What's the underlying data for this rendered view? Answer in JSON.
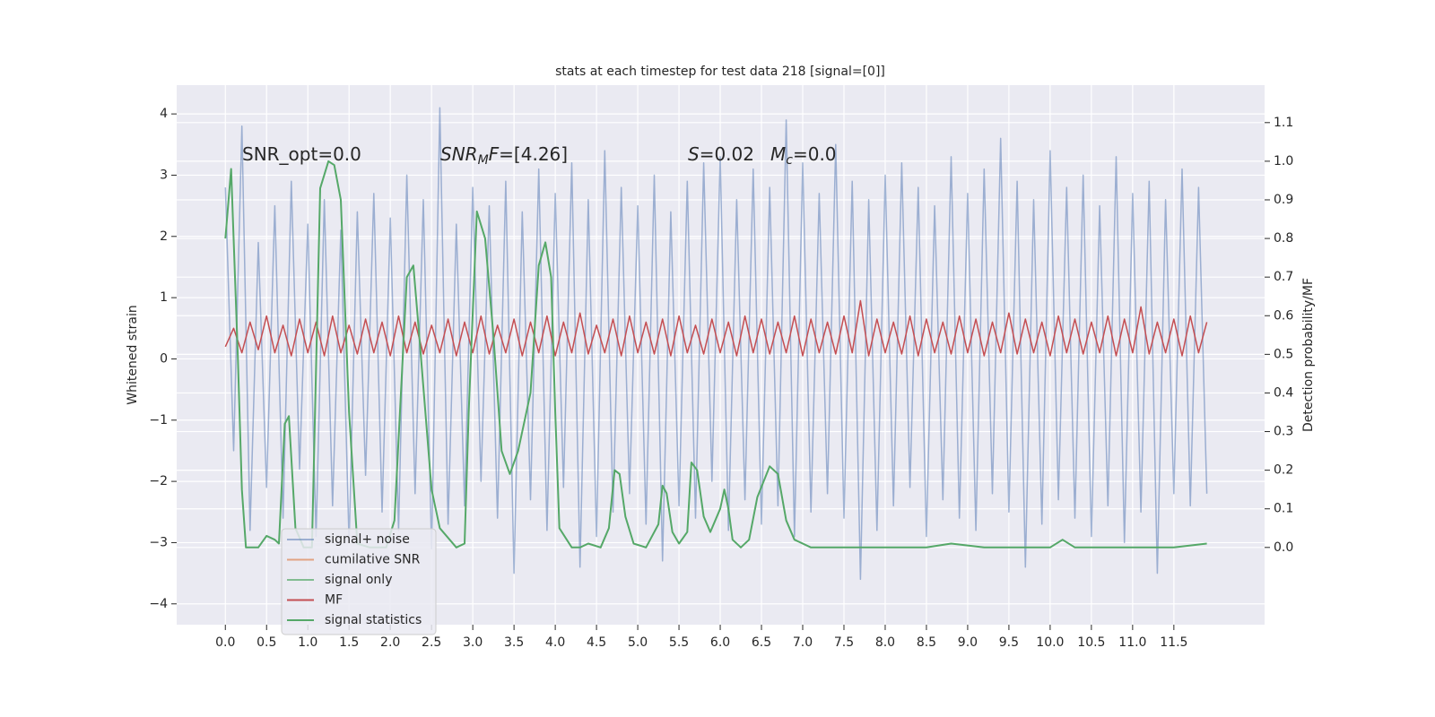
{
  "chart_data": {
    "type": "line",
    "title": "stats at each timestep for test data 218 [signal=[0]]",
    "ylabel": "Whitened strain",
    "y2label": "Detection probability/MF",
    "grid": true,
    "legend": "lower left",
    "xlim": [
      -0.59,
      12.6
    ],
    "ylim": [
      -4.34,
      4.47
    ],
    "y2lim": [
      -0.2,
      1.197
    ],
    "xticks": [
      {
        "value": 0,
        "label": "0.0"
      },
      {
        "value": 0.5,
        "label": "0.5"
      },
      {
        "value": 1,
        "label": "1.0"
      },
      {
        "value": 1.5,
        "label": "1.5"
      },
      {
        "value": 2,
        "label": "2.0"
      },
      {
        "value": 2.5,
        "label": "2.5"
      },
      {
        "value": 3,
        "label": "3.0"
      },
      {
        "value": 3.5,
        "label": "3.5"
      },
      {
        "value": 4,
        "label": "4.0"
      },
      {
        "value": 4.5,
        "label": "4.5"
      },
      {
        "value": 5,
        "label": "5.0"
      },
      {
        "value": 5.5,
        "label": "5.5"
      },
      {
        "value": 6,
        "label": "6.0"
      },
      {
        "value": 6.5,
        "label": "6.5"
      },
      {
        "value": 7,
        "label": "7.0"
      },
      {
        "value": 7.5,
        "label": "7.5"
      },
      {
        "value": 8,
        "label": "8.0"
      },
      {
        "value": 8.5,
        "label": "8.5"
      },
      {
        "value": 9,
        "label": "9.0"
      },
      {
        "value": 9.5,
        "label": "9.5"
      },
      {
        "value": 10,
        "label": "10.0"
      },
      {
        "value": 10.5,
        "label": "10.5"
      },
      {
        "value": 11,
        "label": "11.0"
      },
      {
        "value": 11.5,
        "label": "11.5"
      }
    ],
    "yticks": [
      {
        "value": -4,
        "label": "−4"
      },
      {
        "value": -3,
        "label": "−3"
      },
      {
        "value": -2,
        "label": "−2"
      },
      {
        "value": -1,
        "label": "−1"
      },
      0,
      1,
      2,
      3,
      4
    ],
    "y2ticks": [
      {
        "value": 0,
        "label": "0.0"
      },
      {
        "value": 0.1,
        "label": "0.1"
      },
      {
        "value": 0.2,
        "label": "0.2"
      },
      {
        "value": 0.3,
        "label": "0.3"
      },
      {
        "value": 0.4,
        "label": "0.4"
      },
      {
        "value": 0.5,
        "label": "0.5"
      },
      {
        "value": 0.6,
        "label": "0.6"
      },
      {
        "value": 0.7,
        "label": "0.7"
      },
      {
        "value": 0.8,
        "label": "0.8"
      },
      {
        "value": 0.9,
        "label": "0.9"
      },
      {
        "value": 1,
        "label": "1.0"
      },
      {
        "value": 1.1,
        "label": "1.1"
      }
    ],
    "annotations": [
      [
        {
          "text": "SNR_opt=0.0"
        }
      ],
      [
        {
          "text": "SNR",
          "italic": true
        },
        {
          "text": "M",
          "italic": true,
          "sub": true
        },
        {
          "text": "F",
          "italic": true
        },
        {
          "text": "=[4.26]"
        }
      ],
      [
        {
          "text": "S",
          "italic": true
        },
        {
          "text": "=0.02"
        }
      ],
      [
        {
          "text": "M",
          "italic": true
        },
        {
          "text": "c",
          "italic": true,
          "sub": true
        },
        {
          "text": "=0.0"
        }
      ]
    ],
    "series": [
      {
        "name": "signal+ noise",
        "color": "#4c72b0",
        "opacity": 0.5,
        "x": [
          0,
          0.1,
          0.2,
          0.3,
          0.4,
          0.5,
          0.6,
          0.7,
          0.8,
          0.9,
          1,
          1.1,
          1.2,
          1.3,
          1.4,
          1.5,
          1.6,
          1.7,
          1.8,
          1.9,
          2,
          2.1,
          2.2,
          2.3,
          2.4,
          2.5,
          2.6,
          2.7,
          2.8,
          2.9,
          3,
          3.1,
          3.2,
          3.3,
          3.4,
          3.5,
          3.6,
          3.7,
          3.8,
          3.9,
          4,
          4.1,
          4.2,
          4.3,
          4.4,
          4.5,
          4.6,
          4.7,
          4.8,
          4.9,
          5,
          5.1,
          5.2,
          5.3,
          5.4,
          5.5,
          5.6,
          5.7,
          5.8,
          5.9,
          6,
          6.1,
          6.2,
          6.3,
          6.4,
          6.5,
          6.6,
          6.7,
          6.8,
          6.9,
          7,
          7.1,
          7.2,
          7.3,
          7.4,
          7.5,
          7.6,
          7.7,
          7.8,
          7.9,
          8,
          8.1,
          8.2,
          8.3,
          8.4,
          8.5,
          8.6,
          8.7,
          8.8,
          8.9,
          9,
          9.1,
          9.2,
          9.3,
          9.4,
          9.5,
          9.6,
          9.7,
          9.8,
          9.9,
          10,
          10.1,
          10.2,
          10.3,
          10.4,
          10.5,
          10.6,
          10.7,
          10.8,
          10.9,
          11,
          11.1,
          11.2,
          11.3,
          11.4,
          11.5,
          11.6,
          11.7,
          11.8,
          11.9
        ],
        "values": [
          2.8,
          -1.5,
          3.8,
          -2.8,
          1.9,
          -2.1,
          2.5,
          -2.6,
          2.9,
          -1.8,
          2.2,
          -2.9,
          2.6,
          -2.4,
          2.1,
          -3.0,
          2.4,
          -1.9,
          2.7,
          -2.5,
          2.3,
          -2.8,
          3.0,
          -2.2,
          2.6,
          -3.1,
          4.1,
          -2.7,
          2.2,
          -2.4,
          2.8,
          -2.0,
          2.5,
          -2.6,
          2.9,
          -3.5,
          2.4,
          -2.3,
          3.1,
          -2.8,
          2.7,
          -2.1,
          3.2,
          -3.4,
          2.6,
          -2.9,
          3.4,
          -2.5,
          2.8,
          -2.2,
          2.5,
          -2.7,
          3.0,
          -3.3,
          2.4,
          -2.4,
          2.9,
          -2.6,
          3.2,
          -2.0,
          3.3,
          -2.8,
          2.6,
          -2.3,
          3.1,
          -2.7,
          2.8,
          -2.4,
          3.9,
          -2.9,
          3.2,
          -2.5,
          2.7,
          -2.2,
          3.5,
          -2.6,
          2.9,
          -3.6,
          2.6,
          -2.8,
          3.0,
          -2.4,
          3.2,
          -2.1,
          2.8,
          -2.9,
          2.5,
          -2.3,
          3.3,
          -2.6,
          2.7,
          -2.8,
          3.1,
          -2.2,
          3.6,
          -2.5,
          2.9,
          -3.4,
          2.6,
          -2.7,
          3.4,
          -2.3,
          2.8,
          -2.6,
          3.0,
          -2.9,
          2.5,
          -2.4,
          3.3,
          -3.0,
          2.7,
          -2.5,
          2.9,
          -3.5,
          2.6,
          -2.2,
          3.1,
          -2.4,
          2.8,
          -2.2
        ]
      },
      {
        "name": "cumilative SNR",
        "color": "#dd8452",
        "opacity": 0.7,
        "x": [],
        "values": []
      },
      {
        "name": "signal only",
        "color": "#55a868",
        "opacity": 0.7,
        "x": [],
        "values": []
      },
      {
        "name": "MF",
        "color": "#c44e52",
        "opacity": 1,
        "x": [
          0,
          0.1,
          0.2,
          0.3,
          0.4,
          0.5,
          0.6,
          0.7,
          0.8,
          0.9,
          1,
          1.1,
          1.2,
          1.3,
          1.4,
          1.5,
          1.6,
          1.7,
          1.8,
          1.9,
          2,
          2.1,
          2.2,
          2.3,
          2.4,
          2.5,
          2.6,
          2.7,
          2.8,
          2.9,
          3,
          3.1,
          3.2,
          3.3,
          3.4,
          3.5,
          3.6,
          3.7,
          3.8,
          3.9,
          4,
          4.1,
          4.2,
          4.3,
          4.4,
          4.5,
          4.6,
          4.7,
          4.8,
          4.9,
          5,
          5.1,
          5.2,
          5.3,
          5.4,
          5.5,
          5.6,
          5.7,
          5.8,
          5.9,
          6,
          6.1,
          6.2,
          6.3,
          6.4,
          6.5,
          6.6,
          6.7,
          6.8,
          6.9,
          7,
          7.1,
          7.2,
          7.3,
          7.4,
          7.5,
          7.6,
          7.7,
          7.8,
          7.9,
          8,
          8.1,
          8.2,
          8.3,
          8.4,
          8.5,
          8.6,
          8.7,
          8.8,
          8.9,
          9,
          9.1,
          9.2,
          9.3,
          9.4,
          9.5,
          9.6,
          9.7,
          9.8,
          9.9,
          10,
          10.1,
          10.2,
          10.3,
          10.4,
          10.5,
          10.6,
          10.7,
          10.8,
          10.9,
          11,
          11.1,
          11.2,
          11.3,
          11.4,
          11.5,
          11.6,
          11.7,
          11.8,
          11.9
        ],
        "values": [
          0.2,
          0.5,
          0.1,
          0.6,
          0.15,
          0.7,
          0.1,
          0.55,
          0.05,
          0.65,
          0.1,
          0.6,
          0.05,
          0.7,
          0.1,
          0.55,
          0.08,
          0.65,
          0.1,
          0.6,
          0.05,
          0.7,
          0.1,
          0.6,
          0.08,
          0.55,
          0.1,
          0.65,
          0.05,
          0.6,
          0.1,
          0.7,
          0.08,
          0.55,
          0.1,
          0.65,
          0.05,
          0.6,
          0.1,
          0.7,
          0.05,
          0.6,
          0.1,
          0.75,
          0.08,
          0.55,
          0.1,
          0.65,
          0.05,
          0.7,
          0.1,
          0.6,
          0.08,
          0.65,
          0.05,
          0.7,
          0.1,
          0.55,
          0.08,
          0.65,
          0.1,
          0.6,
          0.05,
          0.7,
          0.1,
          0.65,
          0.08,
          0.6,
          0.1,
          0.7,
          0.05,
          0.65,
          0.1,
          0.6,
          0.08,
          0.7,
          0.1,
          0.95,
          0.05,
          0.65,
          0.1,
          0.6,
          0.08,
          0.7,
          0.05,
          0.65,
          0.1,
          0.6,
          0.08,
          0.7,
          0.1,
          0.65,
          0.05,
          0.6,
          0.1,
          0.75,
          0.08,
          0.65,
          0.1,
          0.6,
          0.05,
          0.7,
          0.1,
          0.65,
          0.08,
          0.6,
          0.1,
          0.7,
          0.05,
          0.65,
          0.1,
          0.85,
          0.08,
          0.6,
          0.1,
          0.65,
          0.05,
          0.7,
          0.1,
          0.6
        ]
      },
      {
        "name": "signal statistics",
        "color": "#55a868",
        "opacity": 1,
        "axis": "y2",
        "x": [
          0,
          0.07,
          0.15,
          0.2,
          0.25,
          0.4,
          0.5,
          0.6,
          0.65,
          0.72,
          0.77,
          0.85,
          0.95,
          1.05,
          1.15,
          1.25,
          1.32,
          1.4,
          1.5,
          1.6,
          1.75,
          1.95,
          2.05,
          2.2,
          2.28,
          2.35,
          2.5,
          2.6,
          2.8,
          2.9,
          2.95,
          3.05,
          3.15,
          3.25,
          3.35,
          3.45,
          3.55,
          3.7,
          3.8,
          3.88,
          3.95,
          4.0,
          4.05,
          4.2,
          4.3,
          4.4,
          4.55,
          4.65,
          4.72,
          4.78,
          4.85,
          4.95,
          5.1,
          5.25,
          5.3,
          5.35,
          5.42,
          5.5,
          5.6,
          5.65,
          5.72,
          5.8,
          5.88,
          6.0,
          6.05,
          6.1,
          6.15,
          6.25,
          6.35,
          6.45,
          6.6,
          6.7,
          6.8,
          6.9,
          7.1,
          7.5,
          8.0,
          8.5,
          8.8,
          9.2,
          9.6,
          10.0,
          10.15,
          10.3,
          11.0,
          11.5,
          11.9
        ],
        "values": [
          0.8,
          0.98,
          0.5,
          0.15,
          0.0,
          0.0,
          0.03,
          0.02,
          0.01,
          0.32,
          0.34,
          0.05,
          0.0,
          0.0,
          0.93,
          1.0,
          0.99,
          0.9,
          0.35,
          0.01,
          0.0,
          0.0,
          0.07,
          0.7,
          0.73,
          0.55,
          0.15,
          0.05,
          0.0,
          0.01,
          0.35,
          0.87,
          0.8,
          0.55,
          0.25,
          0.19,
          0.25,
          0.4,
          0.73,
          0.79,
          0.7,
          0.35,
          0.05,
          0.0,
          0.0,
          0.01,
          0.0,
          0.05,
          0.2,
          0.19,
          0.08,
          0.01,
          0.0,
          0.06,
          0.16,
          0.14,
          0.04,
          0.01,
          0.04,
          0.22,
          0.2,
          0.08,
          0.04,
          0.1,
          0.15,
          0.1,
          0.02,
          0.0,
          0.02,
          0.13,
          0.21,
          0.19,
          0.07,
          0.02,
          0.0,
          0.0,
          0.0,
          0.0,
          0.01,
          0.0,
          0.0,
          0.0,
          0.02,
          0.0,
          0.0,
          0.0,
          0.01
        ]
      }
    ]
  }
}
